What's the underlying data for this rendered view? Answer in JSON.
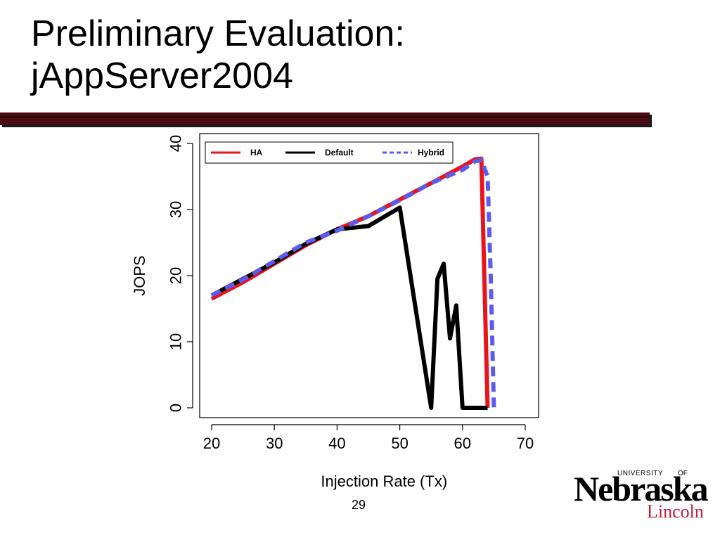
{
  "slide": {
    "title_line1": "Preliminary Evaluation:",
    "title_line2": "jAppServer2004",
    "page_number": "29",
    "accent_color": "#4a0c14"
  },
  "logo": {
    "university_text": "UNIVERSITY",
    "of_text": "OF",
    "name": "Nebraska",
    "city": "Lincoln",
    "city_color": "#c41e3a"
  },
  "chart_data": {
    "type": "line",
    "xlabel": "Injection Rate (Tx)",
    "ylabel": "JOPS",
    "xlim": [
      20,
      70
    ],
    "ylim": [
      0,
      40
    ],
    "xticks": [
      20,
      30,
      40,
      50,
      60,
      70
    ],
    "yticks": [
      0,
      10,
      20,
      30,
      40
    ],
    "grid": false,
    "legend_position": "top",
    "series": [
      {
        "name": "HA",
        "color": "#e8141c",
        "style": "solid",
        "points": [
          [
            20,
            16.5
          ],
          [
            25,
            19
          ],
          [
            30,
            21.8
          ],
          [
            35,
            24.6
          ],
          [
            40,
            27
          ],
          [
            45,
            29
          ],
          [
            50,
            31.5
          ],
          [
            55,
            34
          ],
          [
            57,
            35
          ],
          [
            60,
            36.5
          ],
          [
            62,
            37.6
          ],
          [
            63,
            37.7
          ],
          [
            64,
            0
          ]
        ]
      },
      {
        "name": "Default",
        "color": "#000000",
        "style": "solid",
        "points": [
          [
            20,
            17
          ],
          [
            25,
            19.5
          ],
          [
            30,
            22
          ],
          [
            35,
            24.8
          ],
          [
            40,
            27
          ],
          [
            45,
            27.5
          ],
          [
            50,
            30.3
          ],
          [
            55,
            0
          ],
          [
            56,
            19.5
          ],
          [
            57,
            21.8
          ],
          [
            58,
            10.5
          ],
          [
            59,
            15.5
          ],
          [
            60,
            0
          ],
          [
            64,
            0
          ]
        ]
      },
      {
        "name": "Hybrid",
        "color": "#5b5bf0",
        "style": "dashed",
        "points": [
          [
            20,
            17
          ],
          [
            25,
            19.4
          ],
          [
            30,
            22.2
          ],
          [
            35,
            25
          ],
          [
            40,
            26.8
          ],
          [
            45,
            29
          ],
          [
            50,
            31.4
          ],
          [
            55,
            34
          ],
          [
            60,
            36
          ],
          [
            62,
            37.3
          ],
          [
            63,
            37.5
          ],
          [
            64,
            35
          ],
          [
            64.5,
            20
          ],
          [
            65,
            0
          ]
        ]
      }
    ]
  }
}
